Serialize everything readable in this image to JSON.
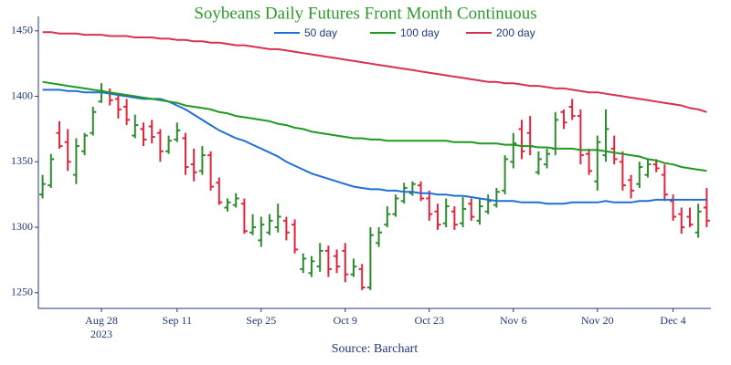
{
  "chart_data": {
    "type": "ohlc",
    "title": "Soybeans Daily Futures Front Month Continuous",
    "source": "Source: Barchart",
    "x": [
      "2023-08-17",
      "2023-08-18",
      "2023-08-21",
      "2023-08-22",
      "2023-08-23",
      "2023-08-24",
      "2023-08-25",
      "2023-08-28",
      "2023-08-29",
      "2023-08-30",
      "2023-08-31",
      "2023-09-01",
      "2023-09-05",
      "2023-09-06",
      "2023-09-07",
      "2023-09-08",
      "2023-09-11",
      "2023-09-12",
      "2023-09-13",
      "2023-09-14",
      "2023-09-15",
      "2023-09-18",
      "2023-09-19",
      "2023-09-20",
      "2023-09-21",
      "2023-09-22",
      "2023-09-25",
      "2023-09-26",
      "2023-09-27",
      "2023-09-28",
      "2023-09-29",
      "2023-10-02",
      "2023-10-03",
      "2023-10-04",
      "2023-10-05",
      "2023-10-06",
      "2023-10-09",
      "2023-10-10",
      "2023-10-11",
      "2023-10-12",
      "2023-10-13",
      "2023-10-16",
      "2023-10-17",
      "2023-10-18",
      "2023-10-19",
      "2023-10-20",
      "2023-10-23",
      "2023-10-24",
      "2023-10-25",
      "2023-10-26",
      "2023-10-27",
      "2023-10-30",
      "2023-10-31",
      "2023-11-01",
      "2023-11-02",
      "2023-11-03",
      "2023-11-06",
      "2023-11-07",
      "2023-11-08",
      "2023-11-09",
      "2023-11-10",
      "2023-11-13",
      "2023-11-14",
      "2023-11-15",
      "2023-11-16",
      "2023-11-17",
      "2023-11-20",
      "2023-11-21",
      "2023-11-22",
      "2023-11-24",
      "2023-11-27",
      "2023-11-28",
      "2023-11-29",
      "2023-11-30",
      "2023-12-01",
      "2023-12-04",
      "2023-12-05",
      "2023-12-06",
      "2023-12-07",
      "2023-12-08"
    ],
    "open": [
      1325,
      1332,
      1372,
      1365,
      1340,
      1358,
      1372,
      1396,
      1403,
      1398,
      1392,
      1370,
      1375,
      1377,
      1372,
      1358,
      1367,
      1368,
      1348,
      1343,
      1355,
      1334,
      1315,
      1317,
      1318,
      1296,
      1290,
      1296,
      1300,
      1305,
      1302,
      1268,
      1265,
      1270,
      1282,
      1278,
      1282,
      1264,
      1268,
      1254,
      1288,
      1302,
      1310,
      1320,
      1326,
      1332,
      1322,
      1312,
      1303,
      1312,
      1303,
      1318,
      1305,
      1312,
      1317,
      1328,
      1350,
      1375,
      1372,
      1342,
      1348,
      1360,
      1388,
      1392,
      1385,
      1356,
      1335,
      1355,
      1360,
      1350,
      1336,
      1333,
      1340,
      1348,
      1340,
      1320,
      1310,
      1308,
      1296,
      1315
    ],
    "high": [
      1340,
      1356,
      1381,
      1375,
      1368,
      1372,
      1392,
      1410,
      1406,
      1402,
      1398,
      1386,
      1380,
      1382,
      1375,
      1370,
      1380,
      1372,
      1360,
      1362,
      1358,
      1338,
      1322,
      1326,
      1322,
      1310,
      1308,
      1310,
      1318,
      1308,
      1306,
      1280,
      1278,
      1288,
      1286,
      1283,
      1288,
      1276,
      1272,
      1300,
      1300,
      1316,
      1325,
      1334,
      1335,
      1335,
      1328,
      1318,
      1322,
      1316,
      1323,
      1322,
      1322,
      1325,
      1330,
      1355,
      1372,
      1382,
      1385,
      1358,
      1360,
      1388,
      1390,
      1398,
      1390,
      1360,
      1370,
      1390,
      1370,
      1358,
      1340,
      1350,
      1352,
      1352,
      1348,
      1325,
      1315,
      1315,
      1318,
      1330
    ],
    "low": [
      1322,
      1330,
      1360,
      1343,
      1333,
      1355,
      1370,
      1395,
      1393,
      1383,
      1378,
      1368,
      1362,
      1364,
      1350,
      1356,
      1365,
      1340,
      1335,
      1340,
      1328,
      1317,
      1312,
      1315,
      1295,
      1294,
      1285,
      1294,
      1296,
      1290,
      1280,
      1265,
      1262,
      1266,
      1262,
      1265,
      1258,
      1262,
      1252,
      1252,
      1285,
      1300,
      1308,
      1318,
      1324,
      1320,
      1305,
      1298,
      1300,
      1298,
      1300,
      1305,
      1302,
      1310,
      1315,
      1325,
      1345,
      1352,
      1355,
      1340,
      1345,
      1355,
      1375,
      1382,
      1348,
      1340,
      1328,
      1350,
      1348,
      1328,
      1322,
      1330,
      1338,
      1342,
      1320,
      1305,
      1295,
      1300,
      1292,
      1300
    ],
    "close": [
      1333,
      1352,
      1362,
      1350,
      1362,
      1370,
      1388,
      1404,
      1397,
      1390,
      1382,
      1378,
      1367,
      1369,
      1358,
      1366,
      1374,
      1346,
      1342,
      1355,
      1331,
      1319,
      1319,
      1322,
      1297,
      1300,
      1302,
      1305,
      1308,
      1296,
      1283,
      1276,
      1274,
      1282,
      1268,
      1270,
      1264,
      1270,
      1254,
      1294,
      1296,
      1310,
      1322,
      1330,
      1333,
      1322,
      1310,
      1302,
      1316,
      1302,
      1314,
      1308,
      1316,
      1320,
      1327,
      1352,
      1364,
      1358,
      1362,
      1352,
      1356,
      1382,
      1380,
      1385,
      1355,
      1343,
      1365,
      1375,
      1352,
      1332,
      1328,
      1346,
      1348,
      1345,
      1325,
      1308,
      1300,
      1302,
      1312,
      1305
    ],
    "up_color": "#2e8b2e",
    "down_color": "#e0263c",
    "series": [
      {
        "name": "50 day",
        "color": "#1f6fd6",
        "values": [
          1405,
          1405,
          1405,
          1404,
          1404,
          1403,
          1403,
          1403,
          1402,
          1401,
          1400,
          1399,
          1398,
          1398,
          1398,
          1396,
          1393,
          1390,
          1386,
          1382,
          1378,
          1374,
          1371,
          1368,
          1366,
          1363,
          1360,
          1357,
          1354,
          1350,
          1347,
          1344,
          1341,
          1339,
          1337,
          1335,
          1333,
          1331,
          1330,
          1329,
          1329,
          1328,
          1328,
          1327,
          1327,
          1326,
          1326,
          1325,
          1325,
          1324,
          1324,
          1323,
          1322,
          1321,
          1320,
          1320,
          1320,
          1319,
          1319,
          1319,
          1318,
          1318,
          1318,
          1319,
          1319,
          1319,
          1319,
          1320,
          1319,
          1319,
          1319,
          1320,
          1320,
          1321,
          1321,
          1321,
          1321,
          1321,
          1321,
          1321
        ]
      },
      {
        "name": "100 day",
        "color": "#1f9a1f",
        "values": [
          1411,
          1410,
          1409,
          1408,
          1407,
          1406,
          1405,
          1404,
          1403,
          1402,
          1401,
          1400,
          1399,
          1398,
          1397,
          1396,
          1395,
          1393,
          1392,
          1391,
          1390,
          1388,
          1387,
          1385,
          1384,
          1383,
          1382,
          1381,
          1379,
          1378,
          1376,
          1375,
          1373,
          1372,
          1371,
          1370,
          1369,
          1368,
          1368,
          1367,
          1367,
          1366,
          1366,
          1366,
          1366,
          1366,
          1366,
          1366,
          1366,
          1365,
          1365,
          1365,
          1364,
          1364,
          1364,
          1363,
          1363,
          1362,
          1362,
          1361,
          1361,
          1360,
          1360,
          1360,
          1359,
          1359,
          1359,
          1358,
          1357,
          1356,
          1355,
          1354,
          1352,
          1351,
          1349,
          1348,
          1346,
          1345,
          1344,
          1343
        ]
      },
      {
        "name": "200 day",
        "color": "#d9304f",
        "values": [
          1449,
          1449,
          1448,
          1448,
          1448,
          1447,
          1447,
          1447,
          1446,
          1446,
          1446,
          1445,
          1445,
          1445,
          1444,
          1444,
          1443,
          1443,
          1442,
          1442,
          1441,
          1441,
          1440,
          1439,
          1439,
          1438,
          1437,
          1436,
          1436,
          1435,
          1434,
          1433,
          1432,
          1431,
          1430,
          1429,
          1428,
          1427,
          1426,
          1425,
          1424,
          1423,
          1422,
          1421,
          1420,
          1419,
          1418,
          1417,
          1416,
          1415,
          1414,
          1413,
          1412,
          1411,
          1411,
          1410,
          1410,
          1409,
          1408,
          1408,
          1407,
          1406,
          1406,
          1405,
          1404,
          1403,
          1403,
          1402,
          1401,
          1400,
          1399,
          1398,
          1397,
          1396,
          1395,
          1394,
          1393,
          1391,
          1390,
          1388
        ]
      }
    ],
    "xticks": [
      {
        "value": "2023-08-28",
        "label": "Aug 28",
        "sublabel": "2023"
      },
      {
        "value": "2023-09-11",
        "label": "Sep 11"
      },
      {
        "value": "2023-09-25",
        "label": "Sep 25"
      },
      {
        "value": "2023-10-09",
        "label": "Oct 9"
      },
      {
        "value": "2023-10-23",
        "label": "Oct 23"
      },
      {
        "value": "2023-11-06",
        "label": "Nov 6"
      },
      {
        "value": "2023-11-20",
        "label": "Nov 20"
      },
      {
        "value": "2023-12-04",
        "label": "Dec 4"
      }
    ],
    "ylim": [
      1238,
      1461
    ],
    "yticks": [
      1250,
      1300,
      1350,
      1400,
      1450
    ]
  }
}
